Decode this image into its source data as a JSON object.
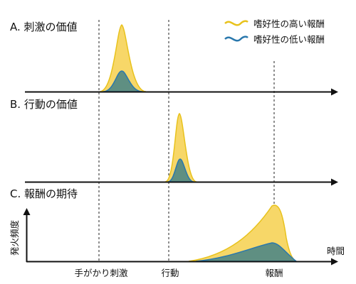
{
  "panels": [
    {
      "label": "A. 刺激の価値"
    },
    {
      "label": "B. 行動の価値"
    },
    {
      "label": "C. 報酬の期待"
    }
  ],
  "legend": [
    {
      "label": "嗜好性の高い報酬",
      "color": "#e8c21c"
    },
    {
      "label": "嗜好性の低い報酬",
      "color": "#2a78ad"
    }
  ],
  "y_axis_label": "発火頻度",
  "x_axis_label": "時間",
  "events": [
    {
      "label": "手がかり刺激"
    },
    {
      "label": "行動"
    },
    {
      "label": "報酬"
    }
  ],
  "colors": {
    "high_fill": "#f7d768",
    "high_stroke": "#e8c21c",
    "low_fill": "#5f8f82",
    "low_stroke": "#2a78ad",
    "axis": "#111111"
  }
}
